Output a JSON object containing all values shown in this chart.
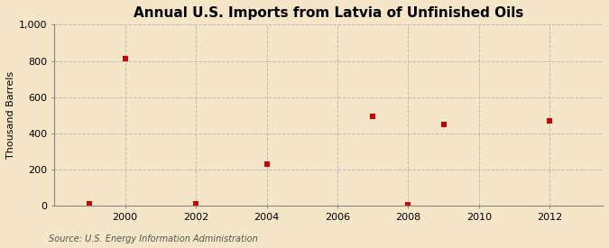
{
  "title": "Annual U.S. Imports from Latvia of Unfinished Oils",
  "ylabel": "Thousand Barrels",
  "source": "Source: U.S. Energy Information Administration",
  "background_color": "#f5e6c8",
  "plot_background_color": "#f5e6c8",
  "data_points": [
    {
      "year": 1999,
      "value": 14
    },
    {
      "year": 2000,
      "value": 810
    },
    {
      "year": 2002,
      "value": 10
    },
    {
      "year": 2004,
      "value": 230
    },
    {
      "year": 2007,
      "value": 496
    },
    {
      "year": 2008,
      "value": 6
    },
    {
      "year": 2009,
      "value": 449
    },
    {
      "year": 2012,
      "value": 470
    }
  ],
  "marker_color": "#cc0000",
  "marker_size": 4,
  "marker_style": "s",
  "xlim": [
    1998,
    2013.5
  ],
  "ylim": [
    0,
    1000
  ],
  "xticks": [
    2000,
    2002,
    2004,
    2006,
    2008,
    2010,
    2012
  ],
  "yticks": [
    0,
    200,
    400,
    600,
    800,
    1000
  ],
  "grid_color": "#bbbbbb",
  "grid_style": "--",
  "title_fontsize": 11,
  "label_fontsize": 8,
  "tick_fontsize": 8,
  "source_fontsize": 7
}
